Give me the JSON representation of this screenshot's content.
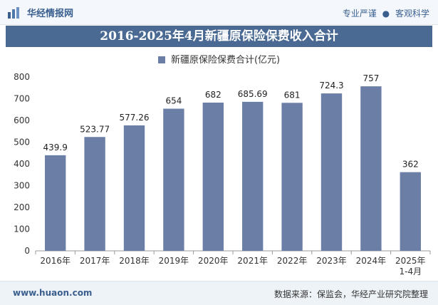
{
  "header": {
    "brand": "华经情报网",
    "slogan_left": "专业严谨",
    "slogan_right": "客观科学"
  },
  "colors": {
    "bar": "#6b7fa6",
    "title_bg": "#4a6a94",
    "accent": "#3a5f8f"
  },
  "chart_data": {
    "type": "bar",
    "title": "2016-2025年4月新疆原保险保费收入合计",
    "categories": [
      "2016年",
      "2017年",
      "2018年",
      "2019年",
      "2020年",
      "2021年",
      "2022年",
      "2023年",
      "2024年",
      "2025年\n1-4月"
    ],
    "series": [
      {
        "name": "新疆原保险保费合计(亿元)",
        "values": [
          439.9,
          523.77,
          577.26,
          654,
          682,
          685.69,
          681,
          724.3,
          757,
          362
        ],
        "labels": [
          "439.9",
          "523.77",
          "577.26",
          "654",
          "682",
          "685.69",
          "681",
          "724.3",
          "757",
          "362"
        ]
      }
    ],
    "ylim": [
      0,
      800
    ],
    "yticks": [
      0,
      100,
      200,
      300,
      400,
      500,
      600,
      700,
      800
    ],
    "grid": false,
    "legend": "top"
  },
  "footer": {
    "website": "www.huaon.com",
    "source": "数据来源：保监会，华经产业研究院整理"
  }
}
